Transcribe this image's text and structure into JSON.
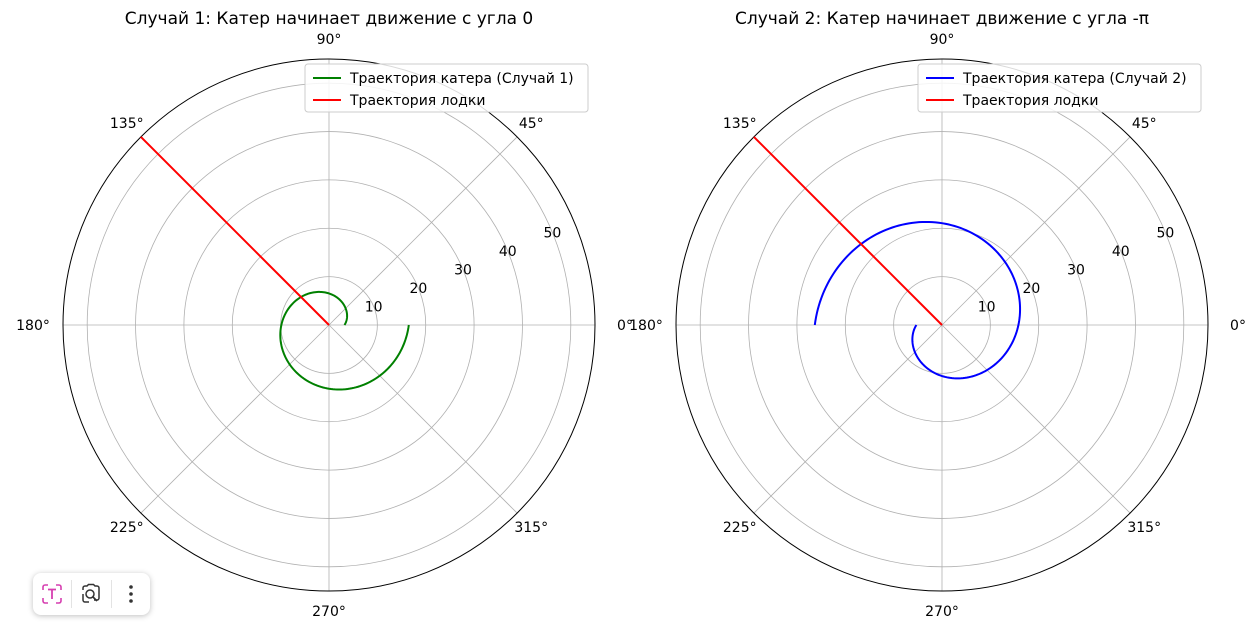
{
  "chart_data": [
    {
      "type": "line",
      "projection": "polar",
      "title": "Случай 1: Катер начинает движение с угла 0",
      "theta_tick_labels": [
        "0°",
        "45°",
        "90°",
        "135°",
        "180°",
        "225°",
        "270°",
        "315°"
      ],
      "theta_ticks_deg": [
        0,
        45,
        90,
        135,
        180,
        225,
        270,
        315
      ],
      "r_tick_labels": [
        "10",
        "20",
        "30",
        "40",
        "50"
      ],
      "r_ticks": [
        10,
        20,
        30,
        40,
        50
      ],
      "rlim": [
        0,
        55
      ],
      "grid": true,
      "legend_position": "top-right",
      "series": [
        {
          "name": "Траектория катера (Случай 1)",
          "color": "#008000",
          "kind": "spiral",
          "theta_start": 0,
          "theta_end": 6.2832,
          "r_start": 3.2,
          "r_end": 16.5
        },
        {
          "name": "Траектория лодки",
          "color": "#ff0000",
          "kind": "ray",
          "theta": 2.3562,
          "r_start": 0,
          "r_end": 55
        }
      ]
    },
    {
      "type": "line",
      "projection": "polar",
      "title": "Случай 2: Катер начинает движение с угла -π",
      "theta_tick_labels": [
        "0°",
        "45°",
        "90°",
        "135°",
        "180°",
        "225°",
        "270°",
        "315°"
      ],
      "theta_ticks_deg": [
        0,
        45,
        90,
        135,
        180,
        225,
        270,
        315
      ],
      "r_tick_labels": [
        "10",
        "20",
        "30",
        "40",
        "50"
      ],
      "r_ticks": [
        10,
        20,
        30,
        40,
        50
      ],
      "rlim": [
        0,
        55
      ],
      "grid": true,
      "legend_position": "top-right",
      "series": [
        {
          "name": "Траектория катера (Случай 2)",
          "color": "#0000ff",
          "kind": "spiral",
          "theta_start": -3.1416,
          "theta_end": 3.1416,
          "r_start": 5.3,
          "r_end": 26.3
        },
        {
          "name": "Траектория лодки",
          "color": "#ff0000",
          "kind": "ray",
          "theta": 2.3562,
          "r_start": 0,
          "r_end": 55
        }
      ]
    }
  ],
  "toolbar": {
    "items": [
      "text-select-icon",
      "visual-search-icon",
      "more-options-icon"
    ],
    "accent_color": "#d63fb0"
  }
}
